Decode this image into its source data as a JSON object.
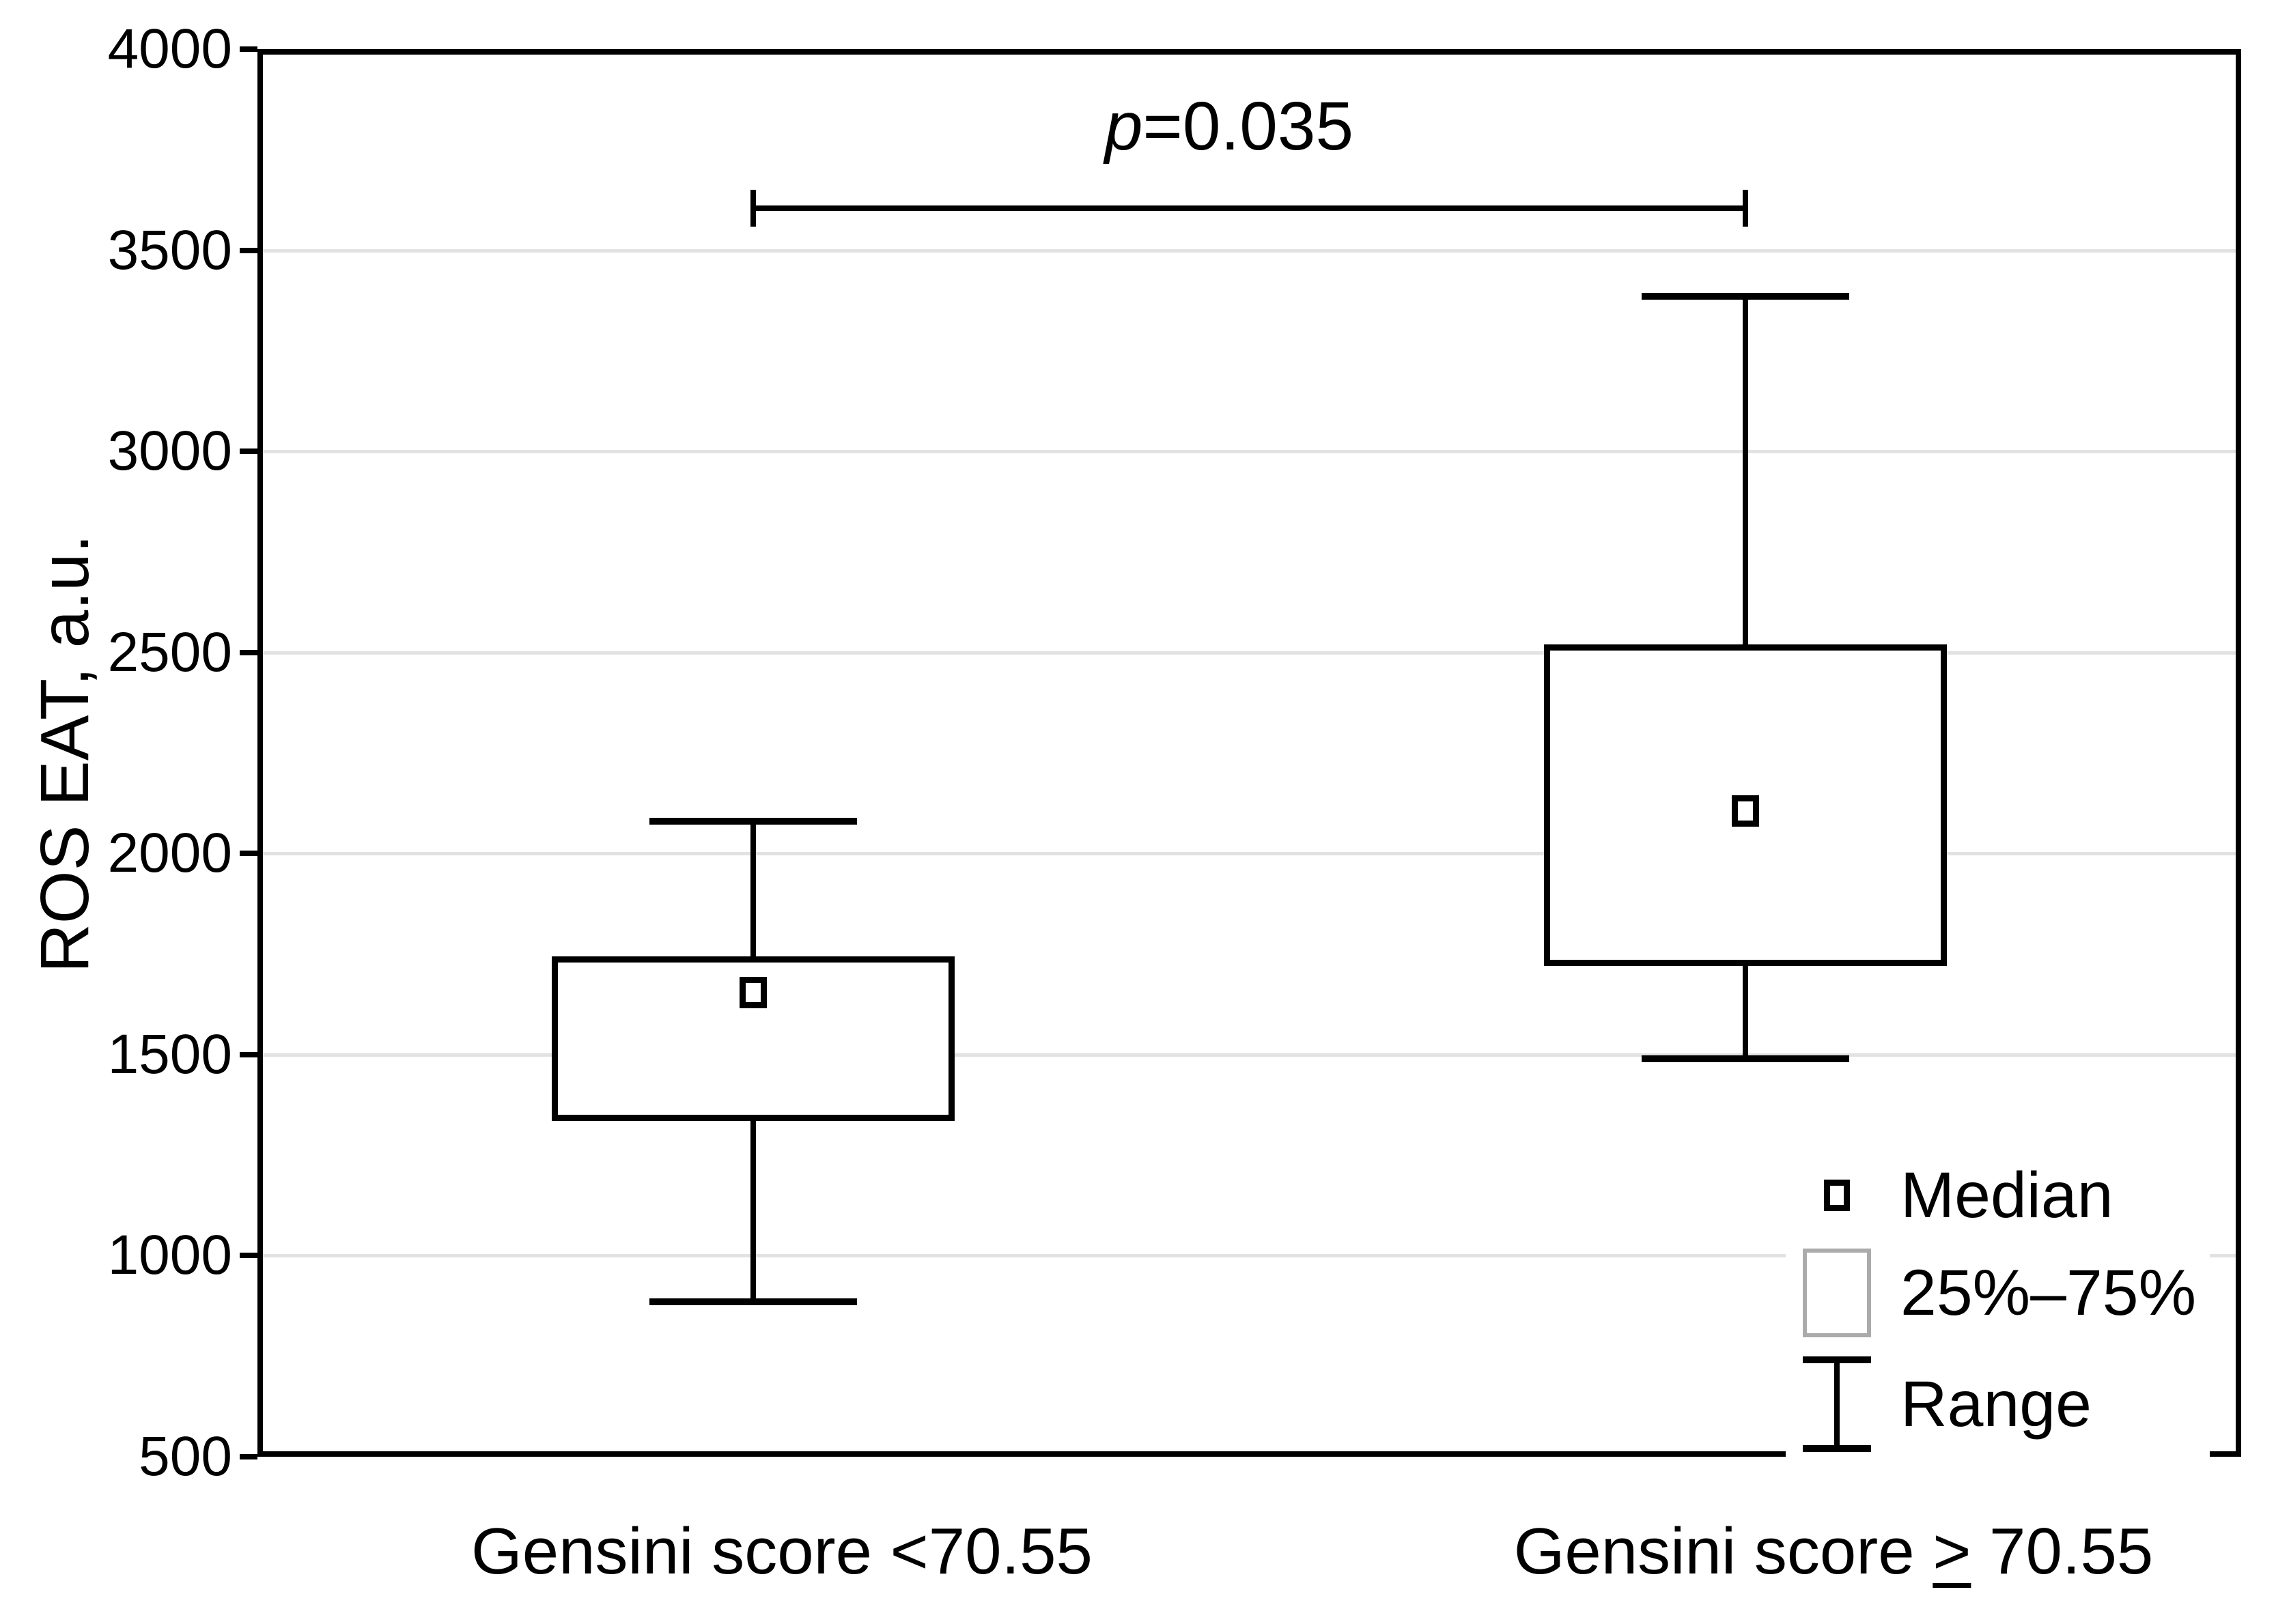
{
  "figure": {
    "y_axis_label": "ROS EAT, a.u.",
    "p_annotation": {
      "italic": "p",
      "rest": "=0.035",
      "full": "p=0.035"
    },
    "x_axis": {
      "label1": "Gensini score <70.55",
      "label2_prefix": "Gensini score ",
      "label2_symbol": ">",
      "label2_suffix": " 70.55"
    },
    "legend": {
      "median": "Median",
      "iqr": "25%–75%",
      "range": "Range"
    }
  },
  "chart_data": {
    "type": "box",
    "title": "",
    "xlabel": "",
    "ylabel": "ROS EAT, a.u.",
    "ylim": [
      500,
      4000
    ],
    "yticks": [
      500,
      1000,
      1500,
      2000,
      2500,
      3000,
      3500,
      4000
    ],
    "grid": "horizontal-light-gray",
    "categories": [
      "Gensini score <70.55",
      "Gensini score ≥ 70.55"
    ],
    "series": [
      {
        "name": "Gensini score <70.55",
        "min": 885,
        "q1": 1335,
        "median": 1655,
        "q3": 1745,
        "max": 2080
      },
      {
        "name": "Gensini score ≥ 70.55",
        "min": 1490,
        "q1": 1720,
        "median": 2105,
        "q3": 2520,
        "max": 3385
      }
    ],
    "annotation": {
      "text": "p=0.035",
      "bracket_value": 3605,
      "connects_categories": [
        0,
        1
      ]
    },
    "legend": [
      "Median",
      "25%–75%",
      "Range"
    ],
    "legend_position": "inside-bottom-right",
    "marker_semantics": {
      "small_square": "Median",
      "box": "25%–75%",
      "whisker": "Range"
    }
  }
}
